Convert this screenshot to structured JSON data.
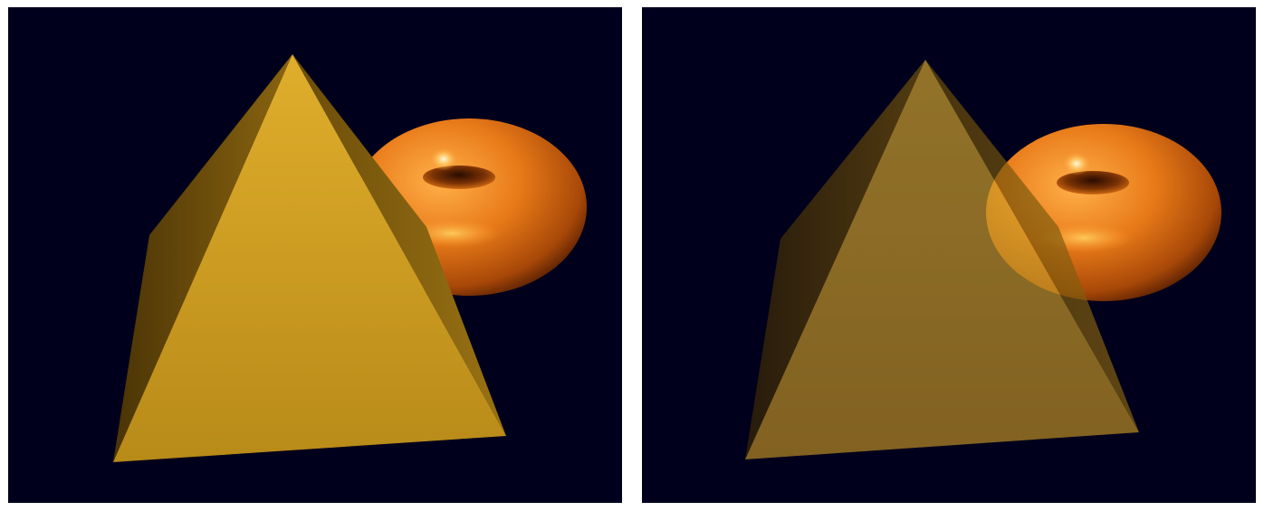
{
  "figure": {
    "panels": [
      {
        "id": "opaque",
        "pyramid_opacity": 1.0
      },
      {
        "id": "transparent",
        "pyramid_opacity": 0.68
      }
    ],
    "colors": {
      "background": "#00001c",
      "torus": "#e07814",
      "torus_highlight": "#fff0a0",
      "pyramid": "#c89a20",
      "pyramid_shadow": "#5a4008"
    }
  }
}
